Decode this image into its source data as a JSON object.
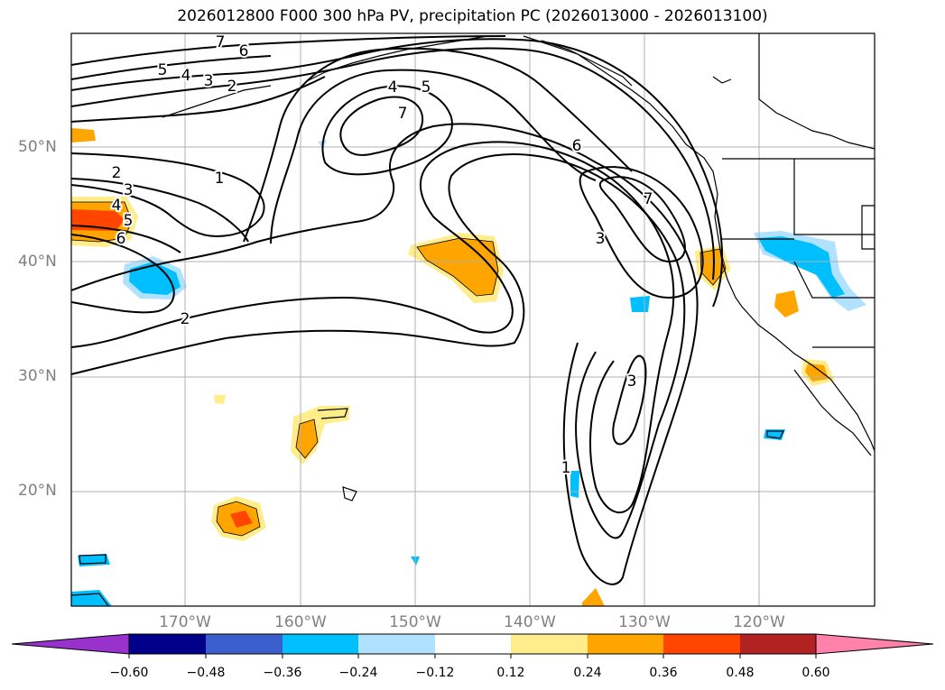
{
  "title": "2026012800 F000 300 hPa PV, precipitation PC (2026013000 - 2026013100)",
  "lat_labels": [
    "50°N",
    "40°N",
    "30°N",
    "20°N"
  ],
  "lon_labels": [
    "170°W",
    "160°W",
    "150°W",
    "140°W",
    "130°W",
    "120°W"
  ],
  "contour_labels": [
    "7",
    "6",
    "5",
    "4",
    "3",
    "2",
    "4",
    "5",
    "7",
    "2",
    "3",
    "4",
    "5",
    "6",
    "1",
    "2",
    "6",
    "7",
    "3",
    "3",
    "1"
  ],
  "colorbar": {
    "ticks": [
      "−0.60",
      "−0.48",
      "−0.36",
      "−0.24",
      "−0.12",
      "0.12",
      "0.24",
      "0.36",
      "0.48",
      "0.60"
    ],
    "colors": [
      "#9932cc",
      "#00008b",
      "#3a5fcd",
      "#00bfff",
      "#b0e2ff",
      "#ffffff",
      "#ffec8b",
      "#ffa500",
      "#ff4500",
      "#b22222",
      "#ff82ab"
    ]
  },
  "fill_colors": {
    "neg_light": "#b0e2ff",
    "neg_mid": "#00bfff",
    "pos_light": "#ffec8b",
    "pos_mid": "#ffa500",
    "pos_high": "#ff4500"
  }
}
